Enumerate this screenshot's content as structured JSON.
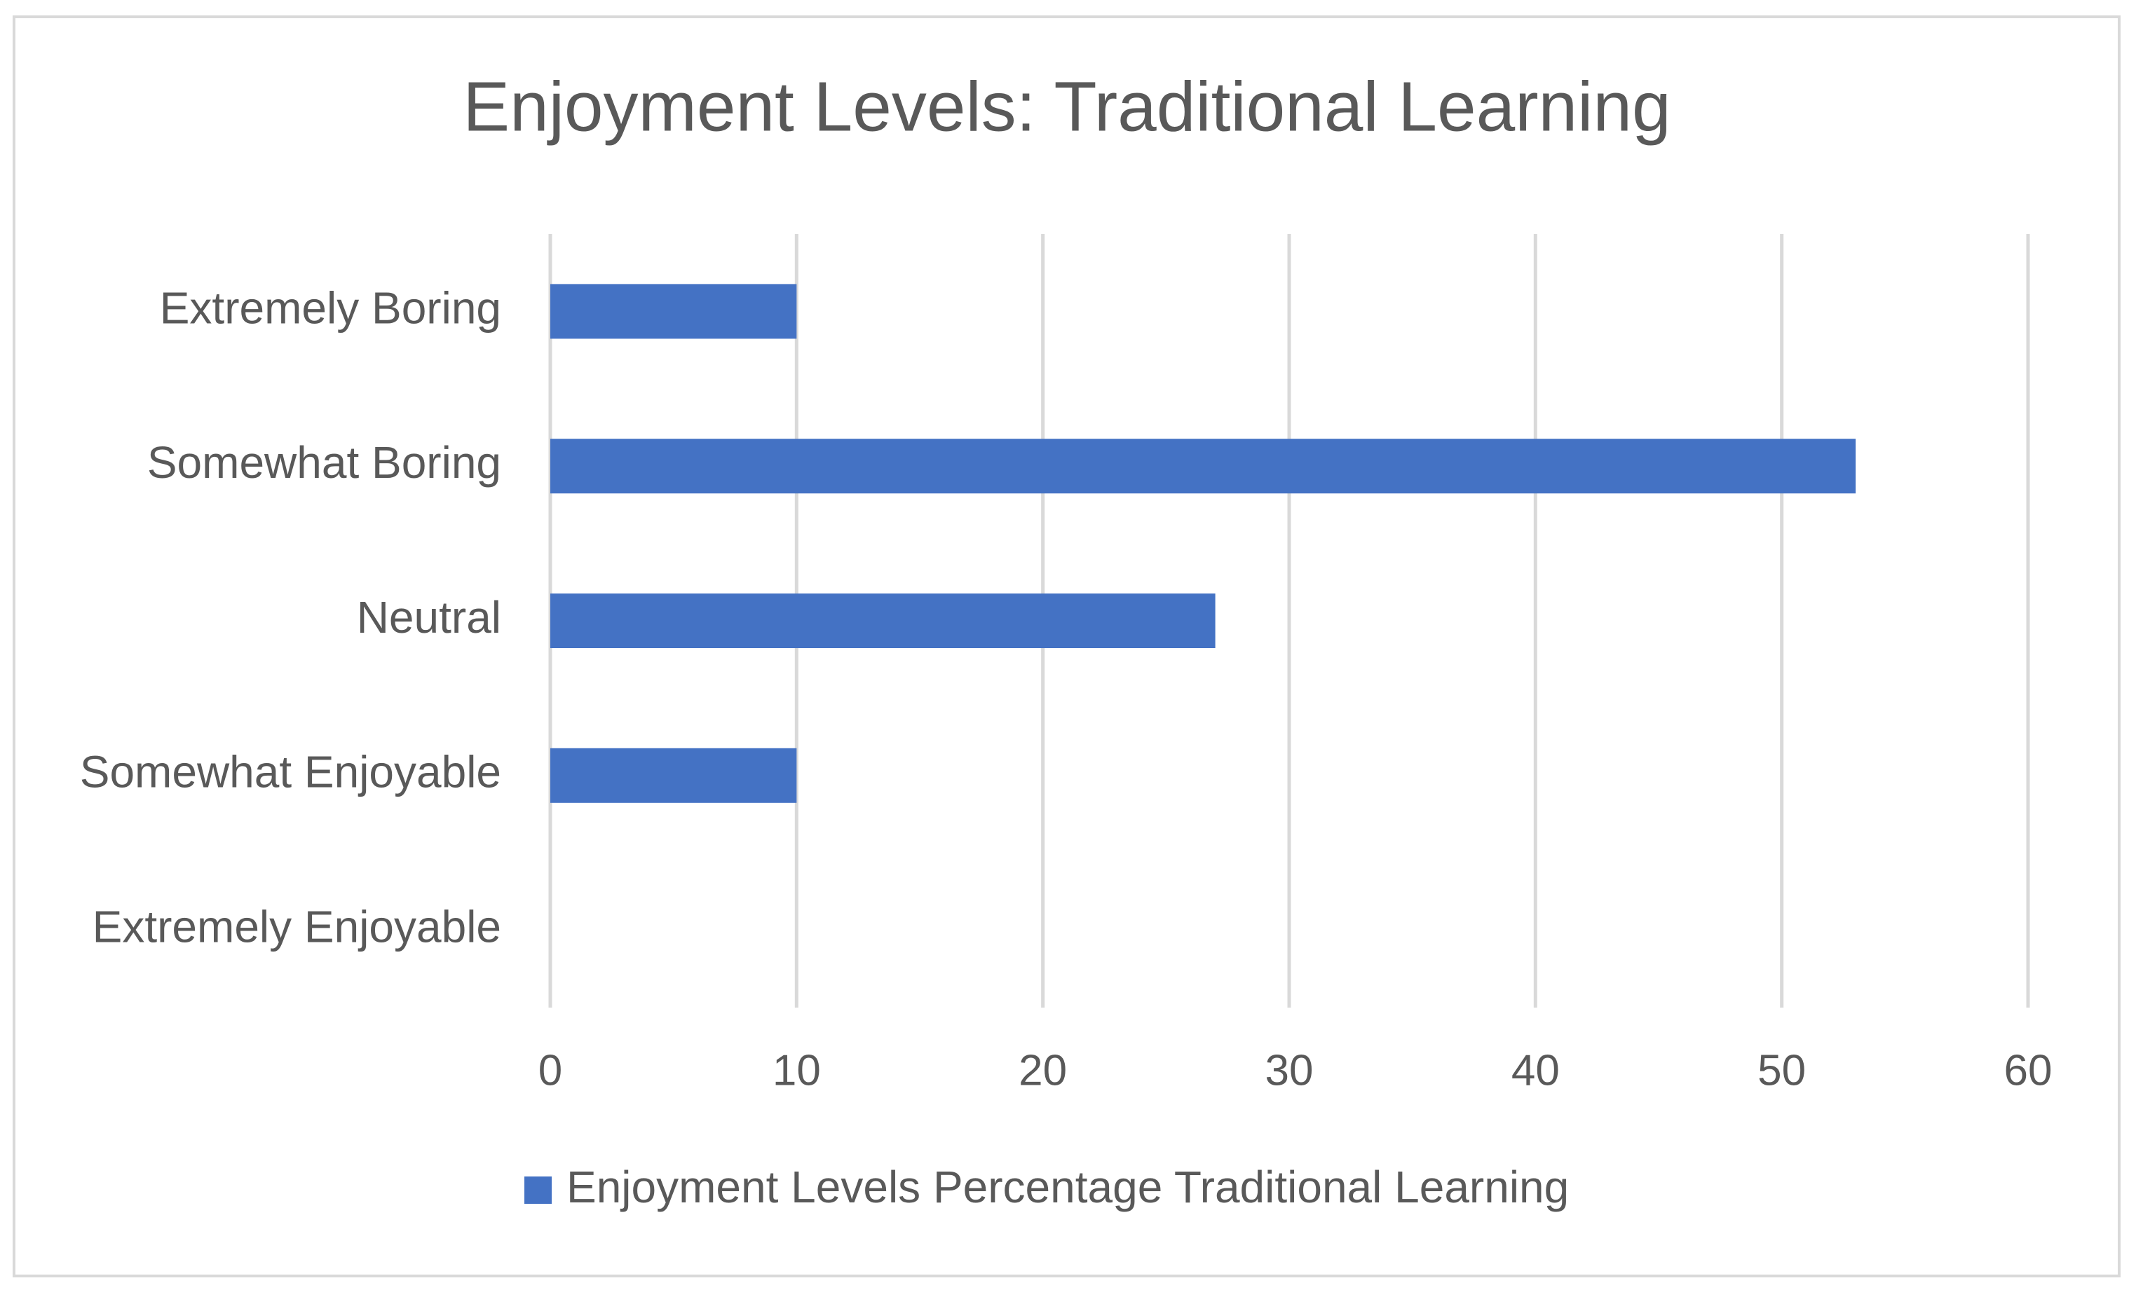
{
  "chart_data": {
    "type": "bar",
    "orientation": "horizontal",
    "title": "Enjoyment Levels: Traditional Learning",
    "categories": [
      "Extremely Boring",
      "Somewhat Boring",
      "Neutral",
      "Somewhat Enjoyable",
      "Extremely Enjoyable"
    ],
    "series": [
      {
        "name": "Enjoyment Levels Percentage Traditional Learning",
        "color": "#4472c4",
        "values": [
          10,
          53,
          27,
          10,
          0
        ]
      }
    ],
    "xlim": [
      0,
      60
    ],
    "xticks": [
      0,
      10,
      20,
      30,
      40,
      50,
      60
    ],
    "grid": true,
    "legend": "bottom"
  }
}
